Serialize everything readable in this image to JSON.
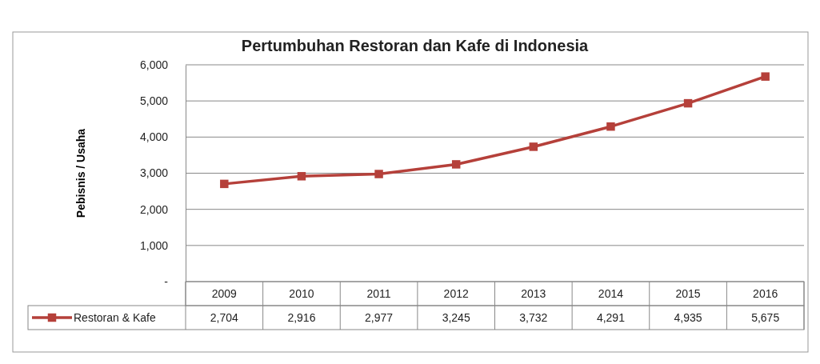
{
  "chart_data": {
    "type": "line",
    "title": "Pertumbuhan Restoran dan Kafe di Indonesia",
    "ylabel": "Pebisnis / Usaha",
    "categories": [
      "2009",
      "2010",
      "2011",
      "2012",
      "2013",
      "2014",
      "2015",
      "2016"
    ],
    "series": [
      {
        "name": "Restoran & Kafe",
        "color": "#b5403a",
        "values": [
          2704,
          2916,
          2977,
          3245,
          3732,
          4291,
          4935,
          5675
        ],
        "value_labels": [
          "2,704",
          "2,916",
          "2,977",
          "3,245",
          "3,732",
          "4,291",
          "4,935",
          "5,675"
        ]
      }
    ],
    "ylim": [
      0,
      6000
    ],
    "yticks": [
      {
        "value": 0,
        "label": "-"
      },
      {
        "value": 1000,
        "label": "1,000"
      },
      {
        "value": 2000,
        "label": "2,000"
      },
      {
        "value": 3000,
        "label": "3,000"
      },
      {
        "value": 4000,
        "label": "4,000"
      },
      {
        "value": 5000,
        "label": "5,000"
      },
      {
        "value": 6000,
        "label": "6,000"
      }
    ],
    "grid": "y",
    "legend": "bottom left",
    "marker": "square",
    "line_style": "solid"
  }
}
